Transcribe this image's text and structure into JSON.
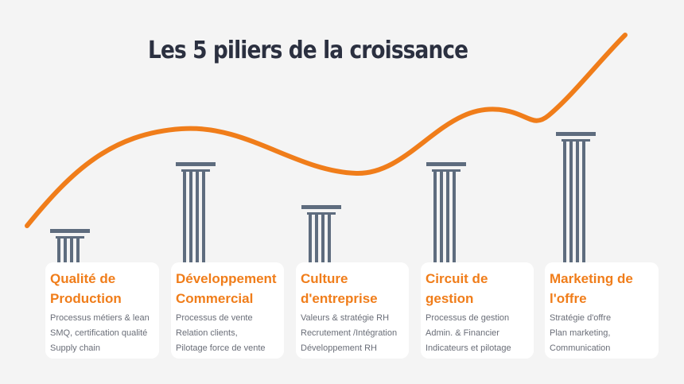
{
  "title": "Les 5 piliers de la croissance",
  "colors": {
    "accent": "#f07d1a",
    "pillar": "#5e6c7e",
    "title": "#2b3040",
    "text": "#6a6e78",
    "card": "#ffffff"
  },
  "pillars": [
    {
      "title": "Qualité de\nProduction",
      "lines": [
        "Processus métiers & lean",
        "SMQ, certification qualité",
        "Supply chain"
      ]
    },
    {
      "title": "Développement\nCommercial",
      "lines": [
        "Processus de vente",
        "Relation clients,",
        "Pilotage force de vente"
      ]
    },
    {
      "title": "Culture\nd'entreprise",
      "lines": [
        "Valeurs & stratégie RH",
        "Recrutement /Intégration",
        "Développement RH"
      ]
    },
    {
      "title": "Circuit de\ngestion",
      "lines": [
        "Processus de gestion",
        "Admin. & Financier",
        "Indicateurs et pilotage"
      ]
    },
    {
      "title": "Marketing  de\nl'offre",
      "lines": [
        "Stratégie d'offre",
        "Plan marketing,",
        "Communication"
      ]
    }
  ]
}
